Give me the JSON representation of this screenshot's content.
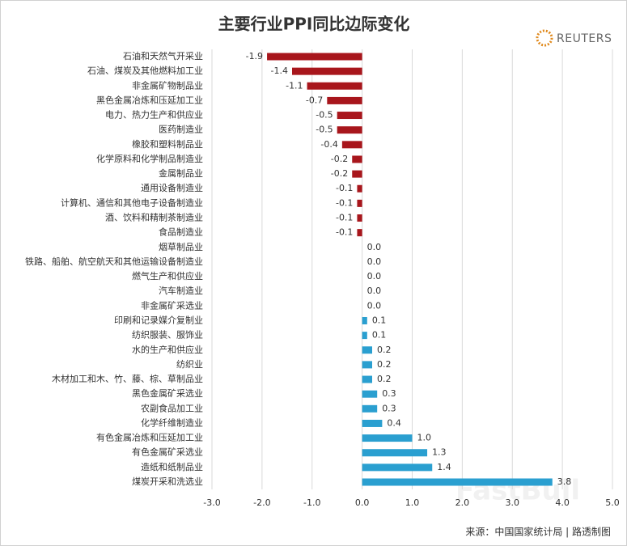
{
  "chart_data": {
    "type": "hbar",
    "title": "主要行业PPI同比边际变化",
    "logo": "REUTERS",
    "source": "来源：中国国家统计局 | 路透制图",
    "watermark": "FastBull",
    "categories": [
      "石油和天然气开采业",
      "石油、煤炭及其他燃料加工业",
      "非金属矿物制品业",
      "黑色金属冶炼和压延加工业",
      "电力、热力生产和供应业",
      "医药制造业",
      "橡胶和塑料制品业",
      "化学原料和化学制品制造业",
      "金属制品业",
      "通用设备制造业",
      "计算机、通信和其他电子设备制造业",
      "酒、饮料和精制茶制造业",
      "食品制造业",
      "烟草制品业",
      "铁路、船舶、航空航天和其他运输设备制造业",
      "燃气生产和供应业",
      "汽车制造业",
      "非金属矿采选业",
      "印刷和记录媒介复制业",
      "纺织服装、服饰业",
      "水的生产和供应业",
      "纺织业",
      "木材加工和木、竹、藤、棕、草制品业",
      "黑色金属矿采选业",
      "农副食品加工业",
      "化学纤维制造业",
      "有色金属冶炼和压延加工业",
      "有色金属矿采选业",
      "造纸和纸制品业",
      "煤炭开采和洗选业"
    ],
    "values": [
      -1.9,
      -1.4,
      -1.1,
      -0.7,
      -0.5,
      -0.5,
      -0.4,
      -0.2,
      -0.2,
      -0.1,
      -0.1,
      -0.1,
      -0.1,
      0,
      0,
      0,
      0,
      0,
      0.1,
      0.1,
      0.2,
      0.2,
      0.2,
      0.3,
      0.3,
      0.4,
      1.0,
      1.3,
      1.4,
      3.8
    ],
    "value_labels": [
      "-1.9",
      "-1.4",
      "-1.1",
      "-0.7",
      "-0.5",
      "-0.5",
      "-0.4",
      "-0.2",
      "-0.2",
      "-0.1",
      "-0.1",
      "-0.1",
      "-0.1",
      "0.0",
      "0.0",
      "0.0",
      "0.0",
      "0.0",
      "0.1",
      "0.1",
      "0.2",
      "0.2",
      "0.2",
      "0.3",
      "0.3",
      "0.4",
      "1.0",
      "1.3",
      "1.4",
      "3.8"
    ],
    "colors": {
      "negative": "#a8161c",
      "positive": "#2a9fd0"
    },
    "xlim": [
      -3,
      5
    ],
    "xticks": [
      {
        "value": -3,
        "label": "-3.0"
      },
      {
        "value": -2,
        "label": "-2.0"
      },
      {
        "value": -1,
        "label": "-1.0"
      },
      {
        "value": 0,
        "label": "0.0"
      },
      {
        "value": 1,
        "label": "1.0"
      },
      {
        "value": 2,
        "label": "2.0"
      },
      {
        "value": 3,
        "label": "3.0"
      },
      {
        "value": 4,
        "label": "4.0"
      },
      {
        "value": 5,
        "label": "5.0"
      }
    ],
    "grid": true
  }
}
